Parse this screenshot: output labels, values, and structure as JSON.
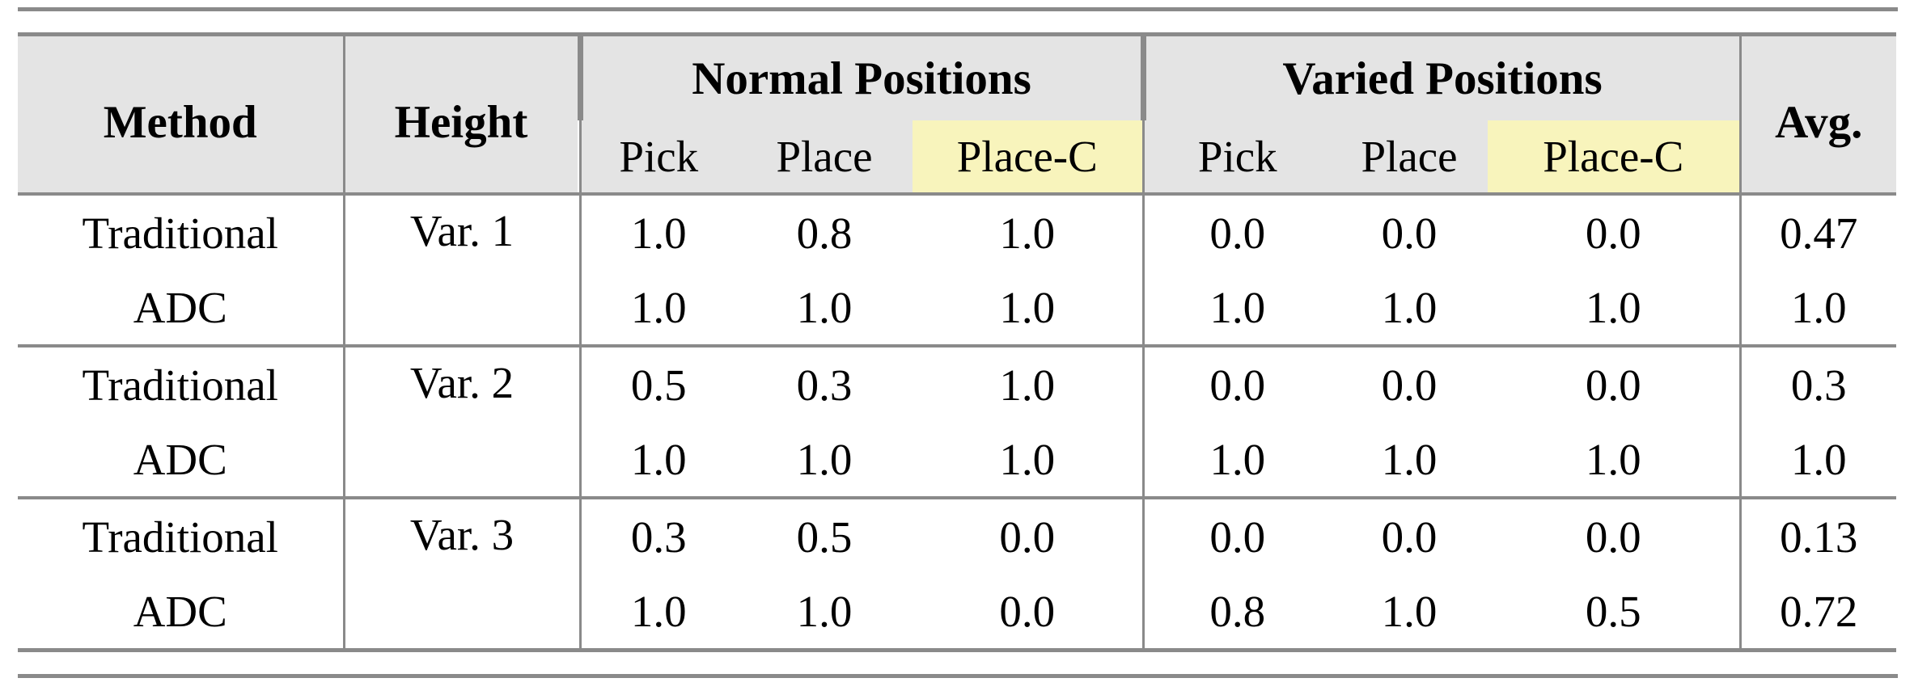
{
  "table": {
    "header": {
      "method": "Method",
      "height": "Height",
      "group_normal": "Normal Positions",
      "group_varied": "Varied Positions",
      "avg": "Avg.",
      "sub": [
        "Pick",
        "Place",
        "Place-C",
        "Pick",
        "Place",
        "Place-C"
      ]
    },
    "groups": [
      {
        "height": "Var. 1",
        "rows": [
          {
            "method": "Traditional",
            "values": [
              "1.0",
              "0.8",
              "1.0",
              "0.0",
              "0.0",
              "0.0"
            ],
            "avg": "0.47"
          },
          {
            "method": "ADC",
            "values": [
              "1.0",
              "1.0",
              "1.0",
              "1.0",
              "1.0",
              "1.0"
            ],
            "avg": "1.0"
          }
        ]
      },
      {
        "height": "Var. 2",
        "rows": [
          {
            "method": "Traditional",
            "values": [
              "0.5",
              "0.3",
              "1.0",
              "0.0",
              "0.0",
              "0.0"
            ],
            "avg": "0.3"
          },
          {
            "method": "ADC",
            "values": [
              "1.0",
              "1.0",
              "1.0",
              "1.0",
              "1.0",
              "1.0"
            ],
            "avg": "1.0"
          }
        ]
      },
      {
        "height": "Var. 3",
        "rows": [
          {
            "method": "Traditional",
            "values": [
              "0.3",
              "0.5",
              "0.0",
              "0.0",
              "0.0",
              "0.0"
            ],
            "avg": "0.13"
          },
          {
            "method": "ADC",
            "values": [
              "1.0",
              "1.0",
              "0.0",
              "0.8",
              "1.0",
              "0.5"
            ],
            "avg": "0.72"
          }
        ]
      }
    ],
    "colors": {
      "header_bg": "#e4e4e4",
      "highlight_yellow": "#f8f4bc",
      "rule_gray": "#8a8a8a"
    }
  }
}
